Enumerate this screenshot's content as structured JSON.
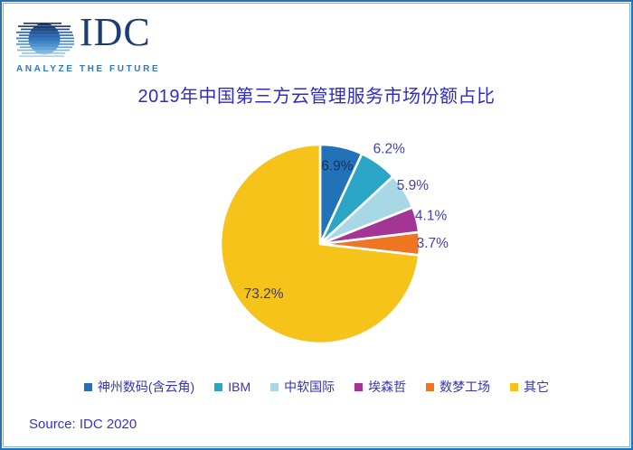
{
  "frame": {
    "border_color": "#2272B8",
    "inner_border_color": "#7FB0DC",
    "background": "#ffffff"
  },
  "logo": {
    "name": "IDC",
    "tagline": "ANALYZE THE FUTURE",
    "navy": "#1A3E74",
    "blue": "#2E79BC"
  },
  "title": "2019年中国第三方云管理服务市场份额占比",
  "source": "Source: IDC 2020",
  "accent_text_color": "#2D2DC6",
  "chart_data": {
    "type": "pie",
    "title": "2019年中国第三方云管理服务市场份额占比",
    "unit": "%",
    "start_angle_deg": 0,
    "direction": "clockwise",
    "legend_position": "bottom",
    "gap_color": "#ffffff",
    "slices": [
      {
        "label": "神州数码(含云角)",
        "value": 6.9,
        "display": "6.9%",
        "color": "#2272B9",
        "label_placement": "inside",
        "label_radius_factor": 0.8,
        "label_color": "#1E3058"
      },
      {
        "label": "IBM",
        "value": 6.2,
        "display": "6.2%",
        "color": "#2CA6C6",
        "label_placement": "outside",
        "label_radius_factor": 1.18,
        "label_color": "#4242B2"
      },
      {
        "label": "中软国际",
        "value": 5.9,
        "display": "5.9%",
        "color": "#A8D8E6",
        "label_placement": "outside",
        "label_radius_factor": 1.1,
        "label_color": "#4242B2"
      },
      {
        "label": "埃森哲",
        "value": 4.1,
        "display": "4.1%",
        "color": "#A33595",
        "label_placement": "outside",
        "label_radius_factor": 1.15,
        "label_color": "#4242B2"
      },
      {
        "label": "数梦工场",
        "value": 3.7,
        "display": "3.7%",
        "color": "#EE7623",
        "label_placement": "outside",
        "label_radius_factor": 1.13,
        "label_color": "#4242B2"
      },
      {
        "label": "其它",
        "value": 73.2,
        "display": "73.2%",
        "color": "#F5C319",
        "label_placement": "inside",
        "label_radius_factor": 0.76,
        "label_color": "#3A3C63"
      }
    ]
  }
}
